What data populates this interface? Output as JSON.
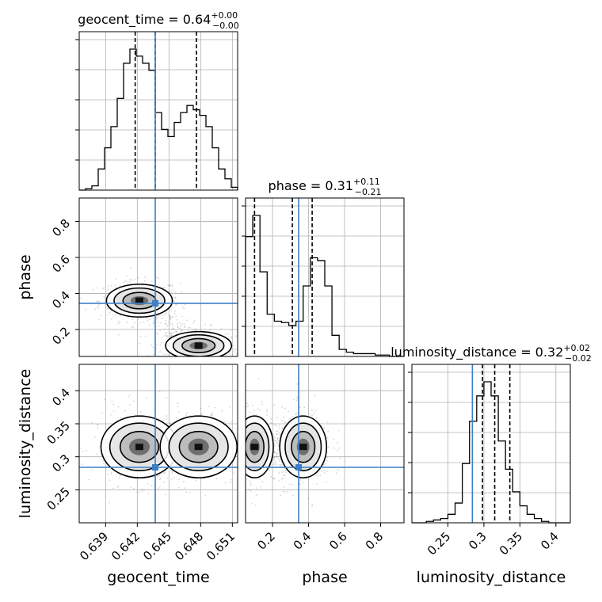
{
  "chart_data": {
    "type": "corner",
    "parameters": [
      "geocent_time",
      "phase",
      "luminosity_distance"
    ],
    "truth_color": "#3b7fc4",
    "truths": {
      "geocent_time": 0.6437,
      "phase": 0.345,
      "luminosity_distance": 0.284
    },
    "panels": [
      {
        "kind": "hist",
        "param": "geocent_time",
        "title_base": "geocent_time = 0.64",
        "title_sup": "+0.00",
        "title_sub": "−0.00",
        "xlim": [
          0.6365,
          0.6515
        ],
        "x_ticks": [
          0.639,
          0.642,
          0.645,
          0.648,
          0.651
        ],
        "quantiles": [
          0.6418,
          0.6437,
          0.6476
        ],
        "bins": [
          0.6365,
          0.6515
        ],
        "counts": [
          0.0,
          0.01,
          0.03,
          0.15,
          0.3,
          0.45,
          0.65,
          0.9,
          1.0,
          0.95,
          0.9,
          0.85,
          0.55,
          0.43,
          0.38,
          0.48,
          0.55,
          0.6,
          0.57,
          0.53,
          0.45,
          0.3,
          0.15,
          0.08,
          0.02
        ]
      },
      {
        "kind": "hist",
        "param": "phase",
        "title_base": "phase = 0.31",
        "title_sup": "+0.11",
        "title_sub": "−0.21",
        "xlim": [
          0.05,
          0.93
        ],
        "x_ticks": [
          0.2,
          0.4,
          0.6,
          0.8
        ],
        "quantiles": [
          0.1,
          0.31,
          0.42
        ],
        "counts": [
          0.85,
          1.0,
          0.6,
          0.3,
          0.25,
          0.24,
          0.22,
          0.25,
          0.5,
          0.7,
          0.68,
          0.5,
          0.15,
          0.05,
          0.03,
          0.02,
          0.02,
          0.02,
          0.01,
          0.01,
          0.0,
          0.0
        ]
      },
      {
        "kind": "hist",
        "param": "luminosity_distance",
        "title_base": "luminosity_distance = 0.32",
        "title_sup": "+0.02",
        "title_sub": "−0.02",
        "xlim": [
          0.2,
          0.42
        ],
        "x_ticks": [
          0.25,
          0.3,
          0.35,
          0.4
        ],
        "quantiles": [
          0.298,
          0.315,
          0.336
        ],
        "counts": [
          0.0,
          0.0,
          0.01,
          0.02,
          0.03,
          0.06,
          0.14,
          0.42,
          0.72,
          0.9,
          1.0,
          0.9,
          0.58,
          0.38,
          0.22,
          0.12,
          0.06,
          0.03,
          0.01,
          0.0,
          0.0,
          0.0
        ]
      }
    ],
    "scatter_panels": [
      {
        "x_param": "geocent_time",
        "y_param": "phase",
        "xlim": [
          0.6365,
          0.6515
        ],
        "ylim": [
          0.05,
          0.93
        ],
        "y_ticks": [
          0.2,
          0.4,
          0.6,
          0.8
        ],
        "blobs": [
          {
            "cx": 0.6422,
            "cy": 0.36,
            "sx": 0.0012,
            "sy": 0.035,
            "w": 1.0
          },
          {
            "cx": 0.6478,
            "cy": 0.11,
            "sx": 0.0012,
            "sy": 0.03,
            "w": 0.9
          }
        ]
      },
      {
        "x_param": "geocent_time",
        "y_param": "luminosity_distance",
        "xlim": [
          0.6365,
          0.6515
        ],
        "ylim": [
          0.2,
          0.44
        ],
        "y_ticks": [
          0.25,
          0.3,
          0.35,
          0.4
        ],
        "blobs": [
          {
            "cx": 0.6422,
            "cy": 0.315,
            "sx": 0.0014,
            "sy": 0.018,
            "w": 1.0
          },
          {
            "cx": 0.6478,
            "cy": 0.315,
            "sx": 0.0014,
            "sy": 0.018,
            "w": 0.8
          }
        ]
      },
      {
        "x_param": "phase",
        "y_param": "luminosity_distance",
        "xlim": [
          0.05,
          0.93
        ],
        "ylim": [
          0.2,
          0.44
        ],
        "blobs": [
          {
            "cx": 0.1,
            "cy": 0.315,
            "sx": 0.04,
            "sy": 0.018,
            "w": 1.0
          },
          {
            "cx": 0.37,
            "cy": 0.315,
            "sx": 0.05,
            "sy": 0.018,
            "w": 0.9
          }
        ]
      }
    ],
    "axis_labels": {
      "x": [
        "geocent_time",
        "phase",
        "luminosity_distance"
      ],
      "y": [
        "phase",
        "luminosity_distance"
      ]
    }
  }
}
